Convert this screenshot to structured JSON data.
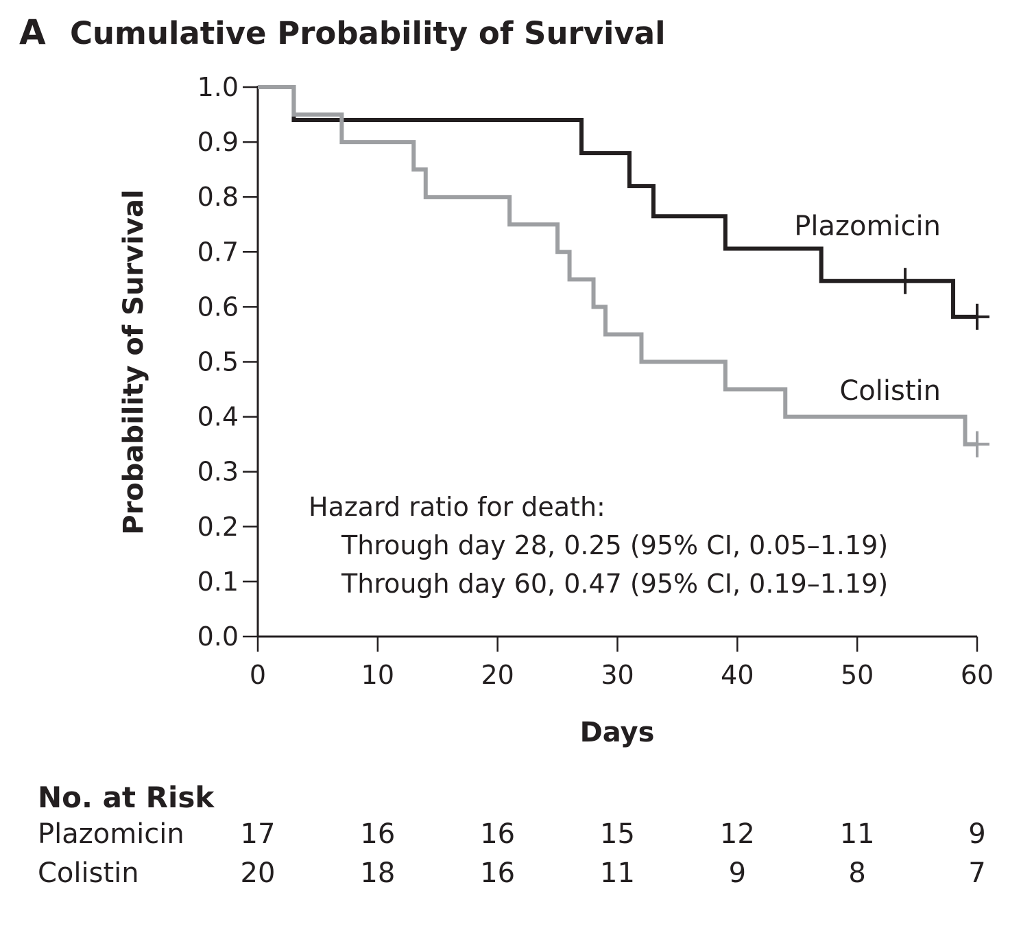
{
  "panel_letter": "A",
  "chart_data": {
    "type": "line",
    "title": "Cumulative Probability of Survival",
    "xlabel": "Days",
    "ylabel": "Probability of Survival",
    "xlim": [
      0,
      60
    ],
    "ylim": [
      0.0,
      1.0
    ],
    "x_ticks": [
      "0",
      "10",
      "20",
      "30",
      "40",
      "50",
      "60"
    ],
    "y_ticks": [
      "0.0",
      "0.1",
      "0.2",
      "0.3",
      "0.4",
      "0.5",
      "0.6",
      "0.7",
      "0.8",
      "0.9",
      "1.0"
    ],
    "grid": false,
    "step": true,
    "series": [
      {
        "name": "Plazomicin",
        "color": "#231f20",
        "x": [
          0,
          3,
          27,
          31,
          33,
          39,
          47,
          58,
          60
        ],
        "y": [
          1.0,
          0.94,
          0.88,
          0.82,
          0.765,
          0.706,
          0.647,
          0.582,
          0.582
        ],
        "censored": [
          [
            54,
            0.647
          ],
          [
            60,
            0.582
          ]
        ]
      },
      {
        "name": "Colistin",
        "color": "#9d9fa2",
        "x": [
          0,
          3,
          7,
          13,
          14,
          21,
          25,
          26,
          28,
          29,
          32,
          39,
          44,
          59,
          60
        ],
        "y": [
          1.0,
          0.95,
          0.9,
          0.85,
          0.8,
          0.75,
          0.7,
          0.65,
          0.6,
          0.55,
          0.5,
          0.45,
          0.4,
          0.35,
          0.35
        ],
        "censored": [
          [
            60,
            0.35
          ]
        ]
      }
    ],
    "annotation": [
      "Hazard ratio for death:",
      "Through day 28, 0.25 (95% CI, 0.05–1.19)",
      "Through day 60, 0.47 (95% CI, 0.19–1.19)"
    ]
  },
  "at_risk": {
    "title": "No. at Risk",
    "days": [
      0,
      10,
      20,
      30,
      40,
      50,
      60
    ],
    "rows": [
      {
        "name": "Plazomicin",
        "values": [
          "17",
          "16",
          "16",
          "15",
          "12",
          "11",
          "9"
        ]
      },
      {
        "name": "Colistin",
        "values": [
          "20",
          "18",
          "16",
          "11",
          "9",
          "8",
          "7"
        ]
      }
    ]
  }
}
